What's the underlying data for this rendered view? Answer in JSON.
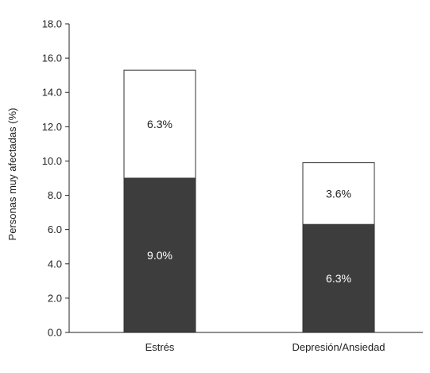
{
  "chart_data": {
    "type": "bar",
    "stacked": true,
    "title": "",
    "xlabel": "",
    "ylabel": "Personas muy afectadas (%)",
    "ylim": [
      0,
      18
    ],
    "y_ticks": [
      0,
      2,
      4,
      6,
      8,
      10,
      12,
      14,
      16,
      18
    ],
    "y_tick_labels": [
      "0.0",
      "2.0",
      "4.0",
      "6.0",
      "8.0",
      "10.0",
      "12.0",
      "14.0",
      "16.0",
      "18.0"
    ],
    "categories": [
      "Estrés",
      "Depresión/Ansiedad"
    ],
    "series": [
      {
        "values": [
          9.0,
          6.3
        ],
        "labels": [
          "9.0%",
          "6.3%"
        ],
        "color": "#3d3d3d",
        "label_color": "#ffffff"
      },
      {
        "values": [
          6.3,
          3.6
        ],
        "labels": [
          "6.3%",
          "3.6%"
        ],
        "color": "#ffffff",
        "label_color": "#222222"
      }
    ],
    "grid": false,
    "legend": "none"
  }
}
